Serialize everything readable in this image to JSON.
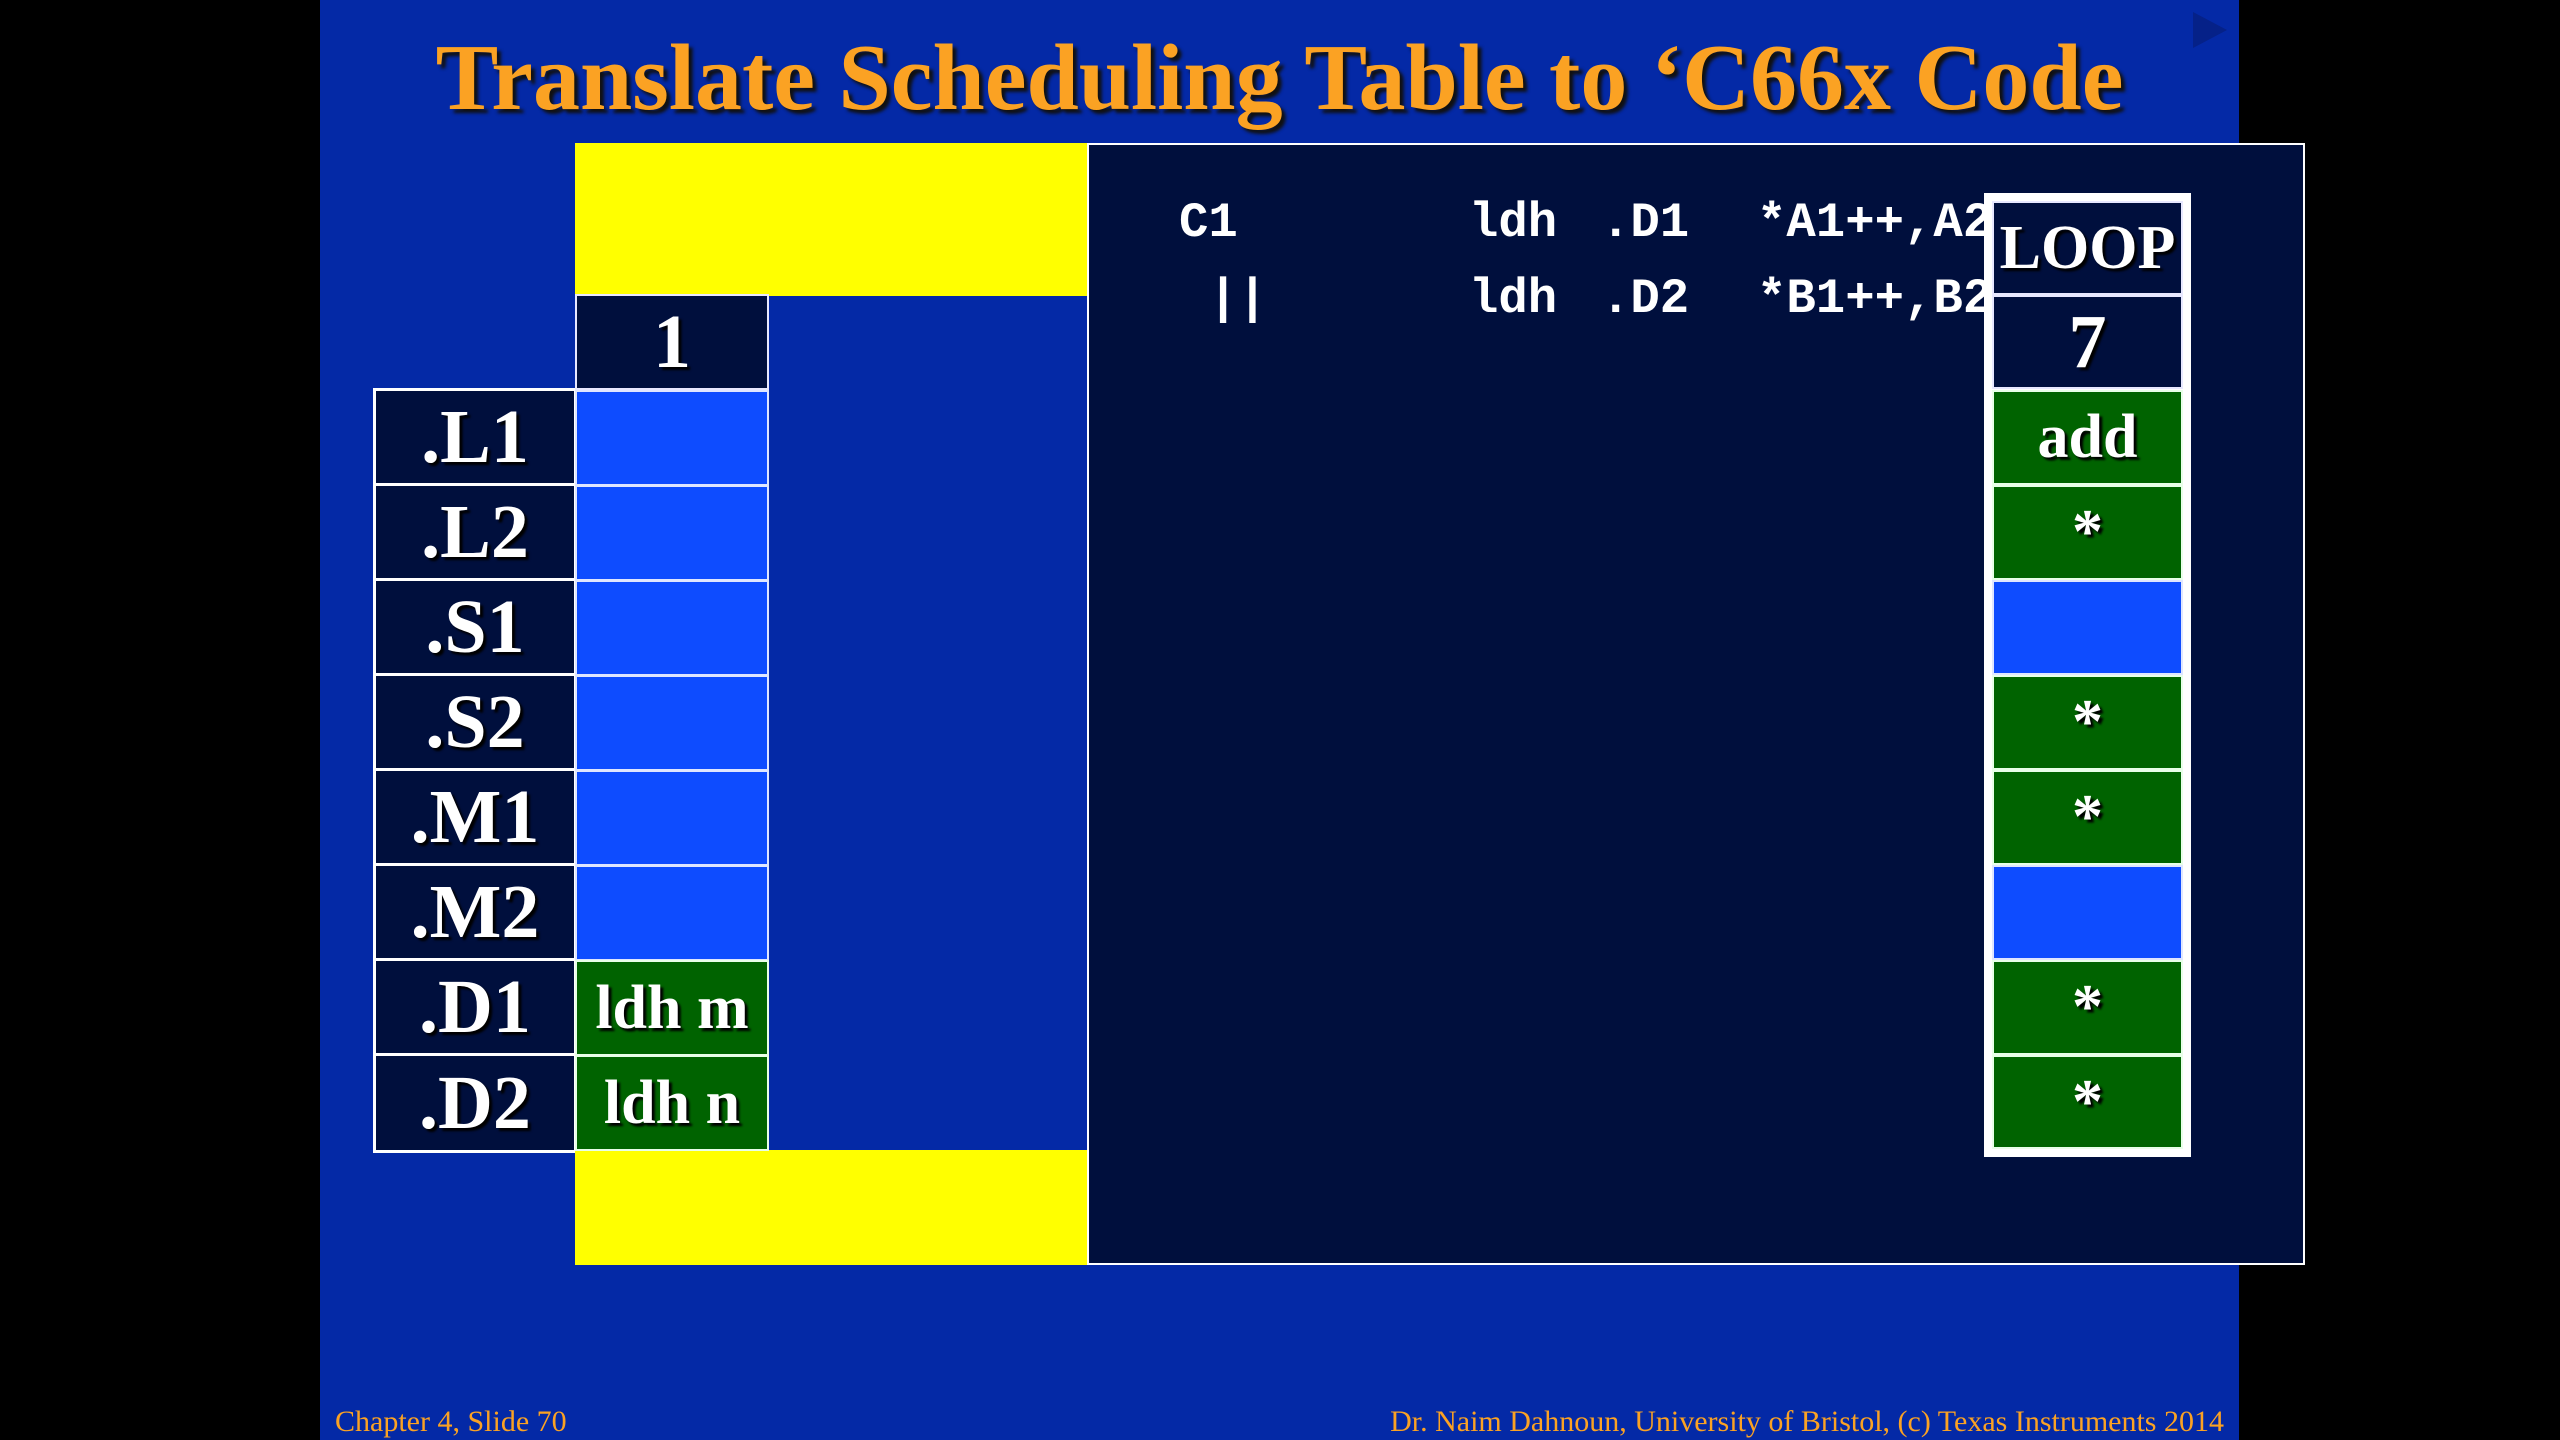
{
  "slide": {
    "title": "Translate Scheduling Table to ‘C66x Code",
    "footer_left": "Chapter 4, Slide 70",
    "footer_right": "Dr. Naim Dahnoun, University of Bristol,  (c) Texas Instruments 2014",
    "nav_icon": "play-triangle-next"
  },
  "units": [
    ".L1",
    ".L2",
    ".S1",
    ".S2",
    ".M1",
    ".M2",
    ".D1",
    ".D2"
  ],
  "cycle1": {
    "header": "1",
    "cells": [
      "",
      "",
      "",
      "",
      "",
      "",
      "ldh m",
      "ldh n"
    ]
  },
  "loop": {
    "label": "LOOP",
    "cycle": "7",
    "cells": [
      "add",
      "*",
      "",
      "*",
      "*",
      "",
      "*",
      "*"
    ],
    "cell_states": [
      "green",
      "green",
      "blue",
      "green",
      "green",
      "blue",
      "green",
      "green"
    ]
  },
  "code": {
    "lines": [
      {
        "label": "C1",
        "instr": "ldh",
        "unit": ".D1",
        "operands": "*A1++,A2"
      },
      {
        "label": " ||",
        "instr": "ldh",
        "unit": ".D2",
        "operands": "*B1++,B2"
      }
    ]
  },
  "colors": {
    "slide_bg": "#0429a6",
    "title": "#fba223",
    "panel": "#000f3d",
    "empty_slot": "#0e4cff",
    "filled_slot": "#006300",
    "highlight": "#ffff00"
  }
}
